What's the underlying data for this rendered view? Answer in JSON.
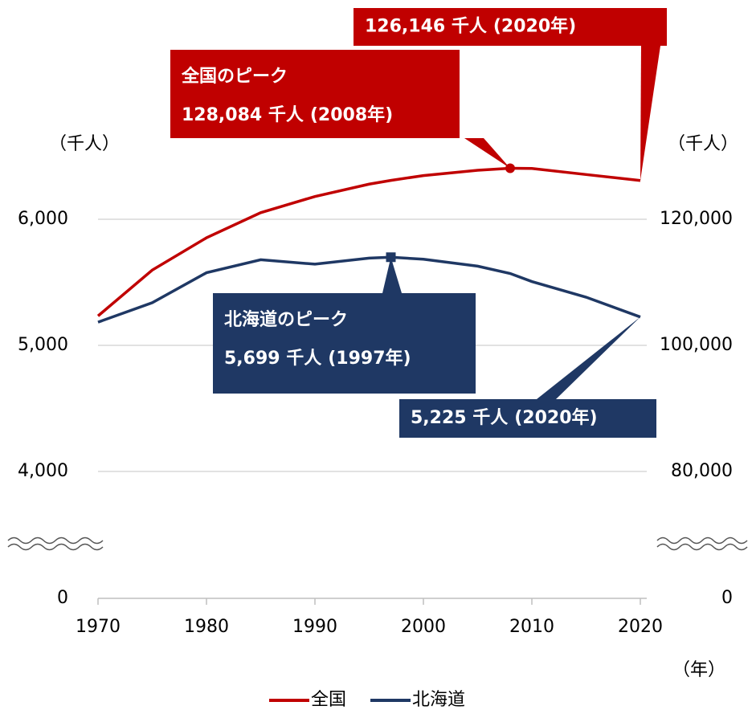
{
  "chart_data": {
    "type": "line",
    "x": [
      1970,
      1975,
      1980,
      1985,
      1990,
      1995,
      1997,
      2000,
      2005,
      2008,
      2010,
      2015,
      2020
    ],
    "xlim": [
      1970,
      2020
    ],
    "xticks": [
      1970,
      1980,
      1990,
      2000,
      2010,
      2020
    ],
    "ylim": [
      0,
      6500
    ],
    "yticks": [
      0,
      {
        "value": 4000,
        "label": "4,000"
      },
      {
        "value": 5000,
        "label": "5,000"
      },
      {
        "value": 6000,
        "label": "6,000"
      }
    ],
    "y2lim": [
      0,
      130000
    ],
    "y2ticks": [
      0,
      {
        "value": 80000,
        "label": "80,000"
      },
      {
        "value": 100000,
        "label": "100,000"
      },
      {
        "value": 120000,
        "label": "120,000"
      }
    ],
    "axis_break": true,
    "grid": true,
    "legend": "bottom",
    "y_label": "（千人）",
    "y2_label": "（千人）",
    "x_label": "（年）",
    "series": [
      {
        "name": "全国",
        "color": "#c00000",
        "axis": "y2",
        "values": [
          104665,
          111940,
          117060,
          121049,
          123611,
          125570,
          126166,
          126926,
          127768,
          128084,
          128057,
          127095,
          126146
        ]
      },
      {
        "name": "北海道",
        "color": "#1f3864",
        "values": [
          5184,
          5338,
          5576,
          5679,
          5644,
          5692,
          5699,
          5683,
          5628,
          5570,
          5506,
          5382,
          5225
        ]
      }
    ],
    "annotations": [
      {
        "series": 0,
        "point": 9,
        "title": "全国のピーク",
        "value": "128,084 千人",
        "year": "(2008年)"
      },
      {
        "series": 0,
        "point": 12,
        "value": "126,146 千人",
        "year": "(2020年)"
      },
      {
        "series": 1,
        "point": 6,
        "title": "北海道のピーク",
        "value": "5,699 千人",
        "year": "(1997年)"
      },
      {
        "series": 1,
        "point": 12,
        "value": "5,225 千人",
        "year": "(2020年)"
      }
    ]
  }
}
